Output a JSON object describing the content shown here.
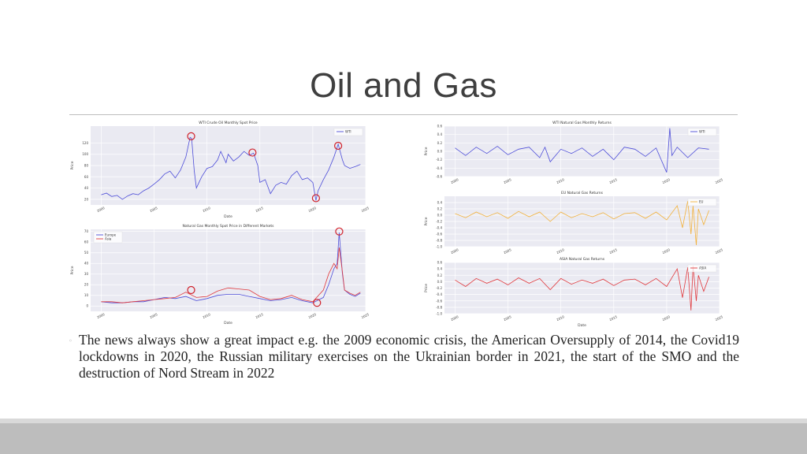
{
  "slide": {
    "title": "Oil and Gas",
    "bullet_mark": "◦",
    "body_text": "The news always show a great impact e.g. the 2009 economic crisis, the American Oversupply of 2014, the Covid19 lockdowns in 2020, the Russian military exercises on the Ukrainian border in 2021, the start of the SMO and the destruction of Nord Stream in 2022"
  },
  "chart_data": [
    {
      "type": "line",
      "title": "WTI Crude Oil Monthly Spot Price",
      "xlabel": "Date",
      "ylabel": "Price",
      "x_ticks": [
        "2000",
        "2005",
        "2010",
        "2015",
        "2020",
        "2025"
      ],
      "xlim": [
        1999,
        2025
      ],
      "ylim": [
        10,
        150
      ],
      "y_ticks": [
        "20",
        "40",
        "60",
        "80",
        "100",
        "120"
      ],
      "legend": "top-right",
      "series": [
        {
          "name": "WTI",
          "color": "#4c4cd8",
          "x": [
            2000,
            2000.5,
            2001,
            2001.5,
            2002,
            2002.5,
            2003,
            2003.5,
            2004,
            2004.5,
            2005,
            2005.5,
            2006,
            2006.5,
            2007,
            2007.5,
            2008,
            2008.4,
            2008.55,
            2008.8,
            2009,
            2009.5,
            2010,
            2010.5,
            2011,
            2011.3,
            2011.8,
            2012,
            2012.5,
            2013,
            2013.5,
            2014,
            2014.4,
            2014.8,
            2015,
            2015.5,
            2016,
            2016.5,
            2017,
            2017.5,
            2018,
            2018.5,
            2019,
            2019.5,
            2020,
            2020.3,
            2020.5,
            2021,
            2021.5,
            2022,
            2022.4,
            2022.8,
            2023,
            2023.5,
            2024,
            2024.5
          ],
          "y": [
            28,
            31,
            25,
            27,
            20,
            26,
            30,
            28,
            35,
            40,
            47,
            55,
            65,
            70,
            58,
            72,
            95,
            130,
            128,
            70,
            40,
            60,
            75,
            78,
            90,
            105,
            85,
            100,
            88,
            95,
            105,
            98,
            102,
            80,
            50,
            55,
            30,
            45,
            50,
            47,
            62,
            70,
            55,
            58,
            50,
            18,
            35,
            55,
            72,
            95,
            118,
            90,
            80,
            75,
            78,
            82
          ]
        }
      ],
      "markers": [
        [
          2008.5,
          132
        ],
        [
          2014.3,
          103
        ],
        [
          2020.3,
          22
        ],
        [
          2022.4,
          115
        ]
      ]
    },
    {
      "type": "line",
      "title": "Natural Gas Monthly Spot Price in Different Markets",
      "xlabel": "Date",
      "ylabel": "Price",
      "x_ticks": [
        "2000",
        "2005",
        "2010",
        "2015",
        "2020",
        "2025"
      ],
      "xlim": [
        1999,
        2025
      ],
      "ylim": [
        -5,
        72
      ],
      "y_ticks": [
        "0",
        "10",
        "20",
        "30",
        "40",
        "50",
        "60",
        "70"
      ],
      "legend": "top-left",
      "series": [
        {
          "name": "Europe",
          "color": "#4c4cd8",
          "x": [
            2000,
            2001,
            2002,
            2003,
            2004,
            2005,
            2006,
            2007,
            2008,
            2009,
            2010,
            2011,
            2012,
            2013,
            2014,
            2015,
            2016,
            2017,
            2018,
            2019,
            2020,
            2021,
            2021.5,
            2022,
            2022.3,
            2022.5,
            2022.8,
            2023,
            2023.5,
            2024,
            2024.5
          ],
          "y": [
            4,
            3,
            3,
            4,
            4,
            6,
            8,
            7,
            9,
            5,
            7,
            10,
            11,
            11,
            9,
            7,
            5,
            6,
            8,
            5,
            3,
            8,
            20,
            35,
            40,
            69,
            30,
            15,
            11,
            9,
            12
          ]
        },
        {
          "name": "Asia",
          "color": "#e0383c",
          "x": [
            2000,
            2001,
            2002,
            2003,
            2004,
            2005,
            2006,
            2007,
            2008,
            2009,
            2010,
            2011,
            2012,
            2013,
            2014,
            2015,
            2016,
            2017,
            2018,
            2019,
            2020,
            2021,
            2021.5,
            2022,
            2022.3,
            2022.5,
            2022.8,
            2023,
            2023.5,
            2024,
            2024.5
          ],
          "y": [
            4,
            4,
            3,
            4,
            5,
            6,
            7,
            8,
            13,
            8,
            9,
            14,
            17,
            16,
            15,
            9,
            6,
            7,
            10,
            6,
            4,
            15,
            30,
            40,
            35,
            55,
            32,
            15,
            12,
            10,
            13
          ]
        }
      ],
      "markers": [
        [
          2008.5,
          15
        ],
        [
          2020.4,
          3
        ],
        [
          2022.5,
          70
        ]
      ]
    },
    {
      "type": "line",
      "title": "WTI Natural Gas Monthly Returns",
      "xlabel": "",
      "ylabel": "Price",
      "x_ticks": [
        "2000",
        "2005",
        "2010",
        "2015",
        "2020",
        "2025"
      ],
      "xlim": [
        1999,
        2025
      ],
      "ylim": [
        -0.6,
        0.6
      ],
      "y_ticks": [
        "-0.6",
        "-0.4",
        "-0.2",
        "0.0",
        "0.2",
        "0.4",
        "0.6"
      ],
      "legend": "top-right",
      "series": [
        {
          "name": "WTI",
          "color": "#4c4cd8",
          "x": [
            2000,
            2001,
            2002,
            2003,
            2004,
            2005,
            2006,
            2007,
            2008,
            2008.5,
            2009,
            2010,
            2011,
            2012,
            2013,
            2014,
            2015,
            2016,
            2017,
            2018,
            2019,
            2020,
            2020.3,
            2020.5,
            2021,
            2022,
            2023,
            2024
          ],
          "y": [
            0.08,
            -0.1,
            0.1,
            -0.05,
            0.12,
            -0.08,
            0.05,
            0.1,
            -0.15,
            0.1,
            -0.25,
            0.05,
            -0.05,
            0.08,
            -0.12,
            0.05,
            -0.2,
            0.1,
            0.05,
            -0.12,
            0.08,
            -0.5,
            0.55,
            -0.1,
            0.1,
            -0.15,
            0.08,
            0.05
          ]
        }
      ]
    },
    {
      "type": "line",
      "title": "EU Natural Gas Returns",
      "xlabel": "",
      "ylabel": "Price",
      "x_ticks": [
        "2000",
        "2005",
        "2010",
        "2015",
        "2020",
        "2025"
      ],
      "xlim": [
        1999,
        2025
      ],
      "ylim": [
        -1.0,
        0.6
      ],
      "y_ticks": [
        "-1.0",
        "-0.8",
        "-0.6",
        "-0.4",
        "-0.2",
        "0.0",
        "0.2",
        "0.4"
      ],
      "legend": "top-right",
      "series": [
        {
          "name": "EU",
          "color": "#f2b13a",
          "x": [
            2000,
            2001,
            2002,
            2003,
            2004,
            2005,
            2006,
            2007,
            2008,
            2009,
            2010,
            2011,
            2012,
            2013,
            2014,
            2015,
            2016,
            2017,
            2018,
            2019,
            2020,
            2021,
            2021.5,
            2022,
            2022.3,
            2022.5,
            2022.8,
            2023,
            2023.5,
            2024
          ],
          "y": [
            0.05,
            -0.08,
            0.1,
            -0.05,
            0.08,
            -0.1,
            0.12,
            -0.05,
            0.1,
            -0.2,
            0.1,
            -0.08,
            0.05,
            -0.05,
            0.08,
            -0.12,
            0.05,
            0.08,
            -0.1,
            0.1,
            -0.15,
            0.3,
            -0.4,
            0.45,
            -0.6,
            0.3,
            -0.95,
            0.2,
            -0.3,
            0.15
          ]
        }
      ]
    },
    {
      "type": "line",
      "title": "ASIA Natural Gas Returns",
      "xlabel": "Date",
      "ylabel": "Price",
      "x_ticks": [
        "2000",
        "2005",
        "2010",
        "2015",
        "2020",
        "2025"
      ],
      "xlim": [
        1999,
        2025
      ],
      "ylim": [
        -1.0,
        0.6
      ],
      "y_ticks": [
        "-1.0",
        "-0.8",
        "-0.6",
        "-0.4",
        "-0.2",
        "0.0",
        "0.2",
        "0.4",
        "0.6"
      ],
      "legend": "top-right",
      "series": [
        {
          "name": "ASIA",
          "color": "#e0383c",
          "x": [
            2000,
            2001,
            2002,
            2003,
            2004,
            2005,
            2006,
            2007,
            2008,
            2009,
            2010,
            2011,
            2012,
            2013,
            2014,
            2015,
            2016,
            2017,
            2018,
            2019,
            2020,
            2021,
            2021.5,
            2022,
            2022.3,
            2022.5,
            2022.8,
            2023,
            2023.5,
            2024
          ],
          "y": [
            0.05,
            -0.15,
            0.1,
            -0.05,
            0.08,
            -0.1,
            0.12,
            -0.05,
            0.1,
            -0.25,
            0.1,
            -0.08,
            0.05,
            -0.05,
            0.08,
            -0.12,
            0.05,
            0.08,
            -0.1,
            0.1,
            -0.15,
            0.4,
            -0.5,
            0.45,
            -0.9,
            0.5,
            -0.6,
            0.2,
            -0.3,
            0.15
          ]
        }
      ]
    }
  ]
}
